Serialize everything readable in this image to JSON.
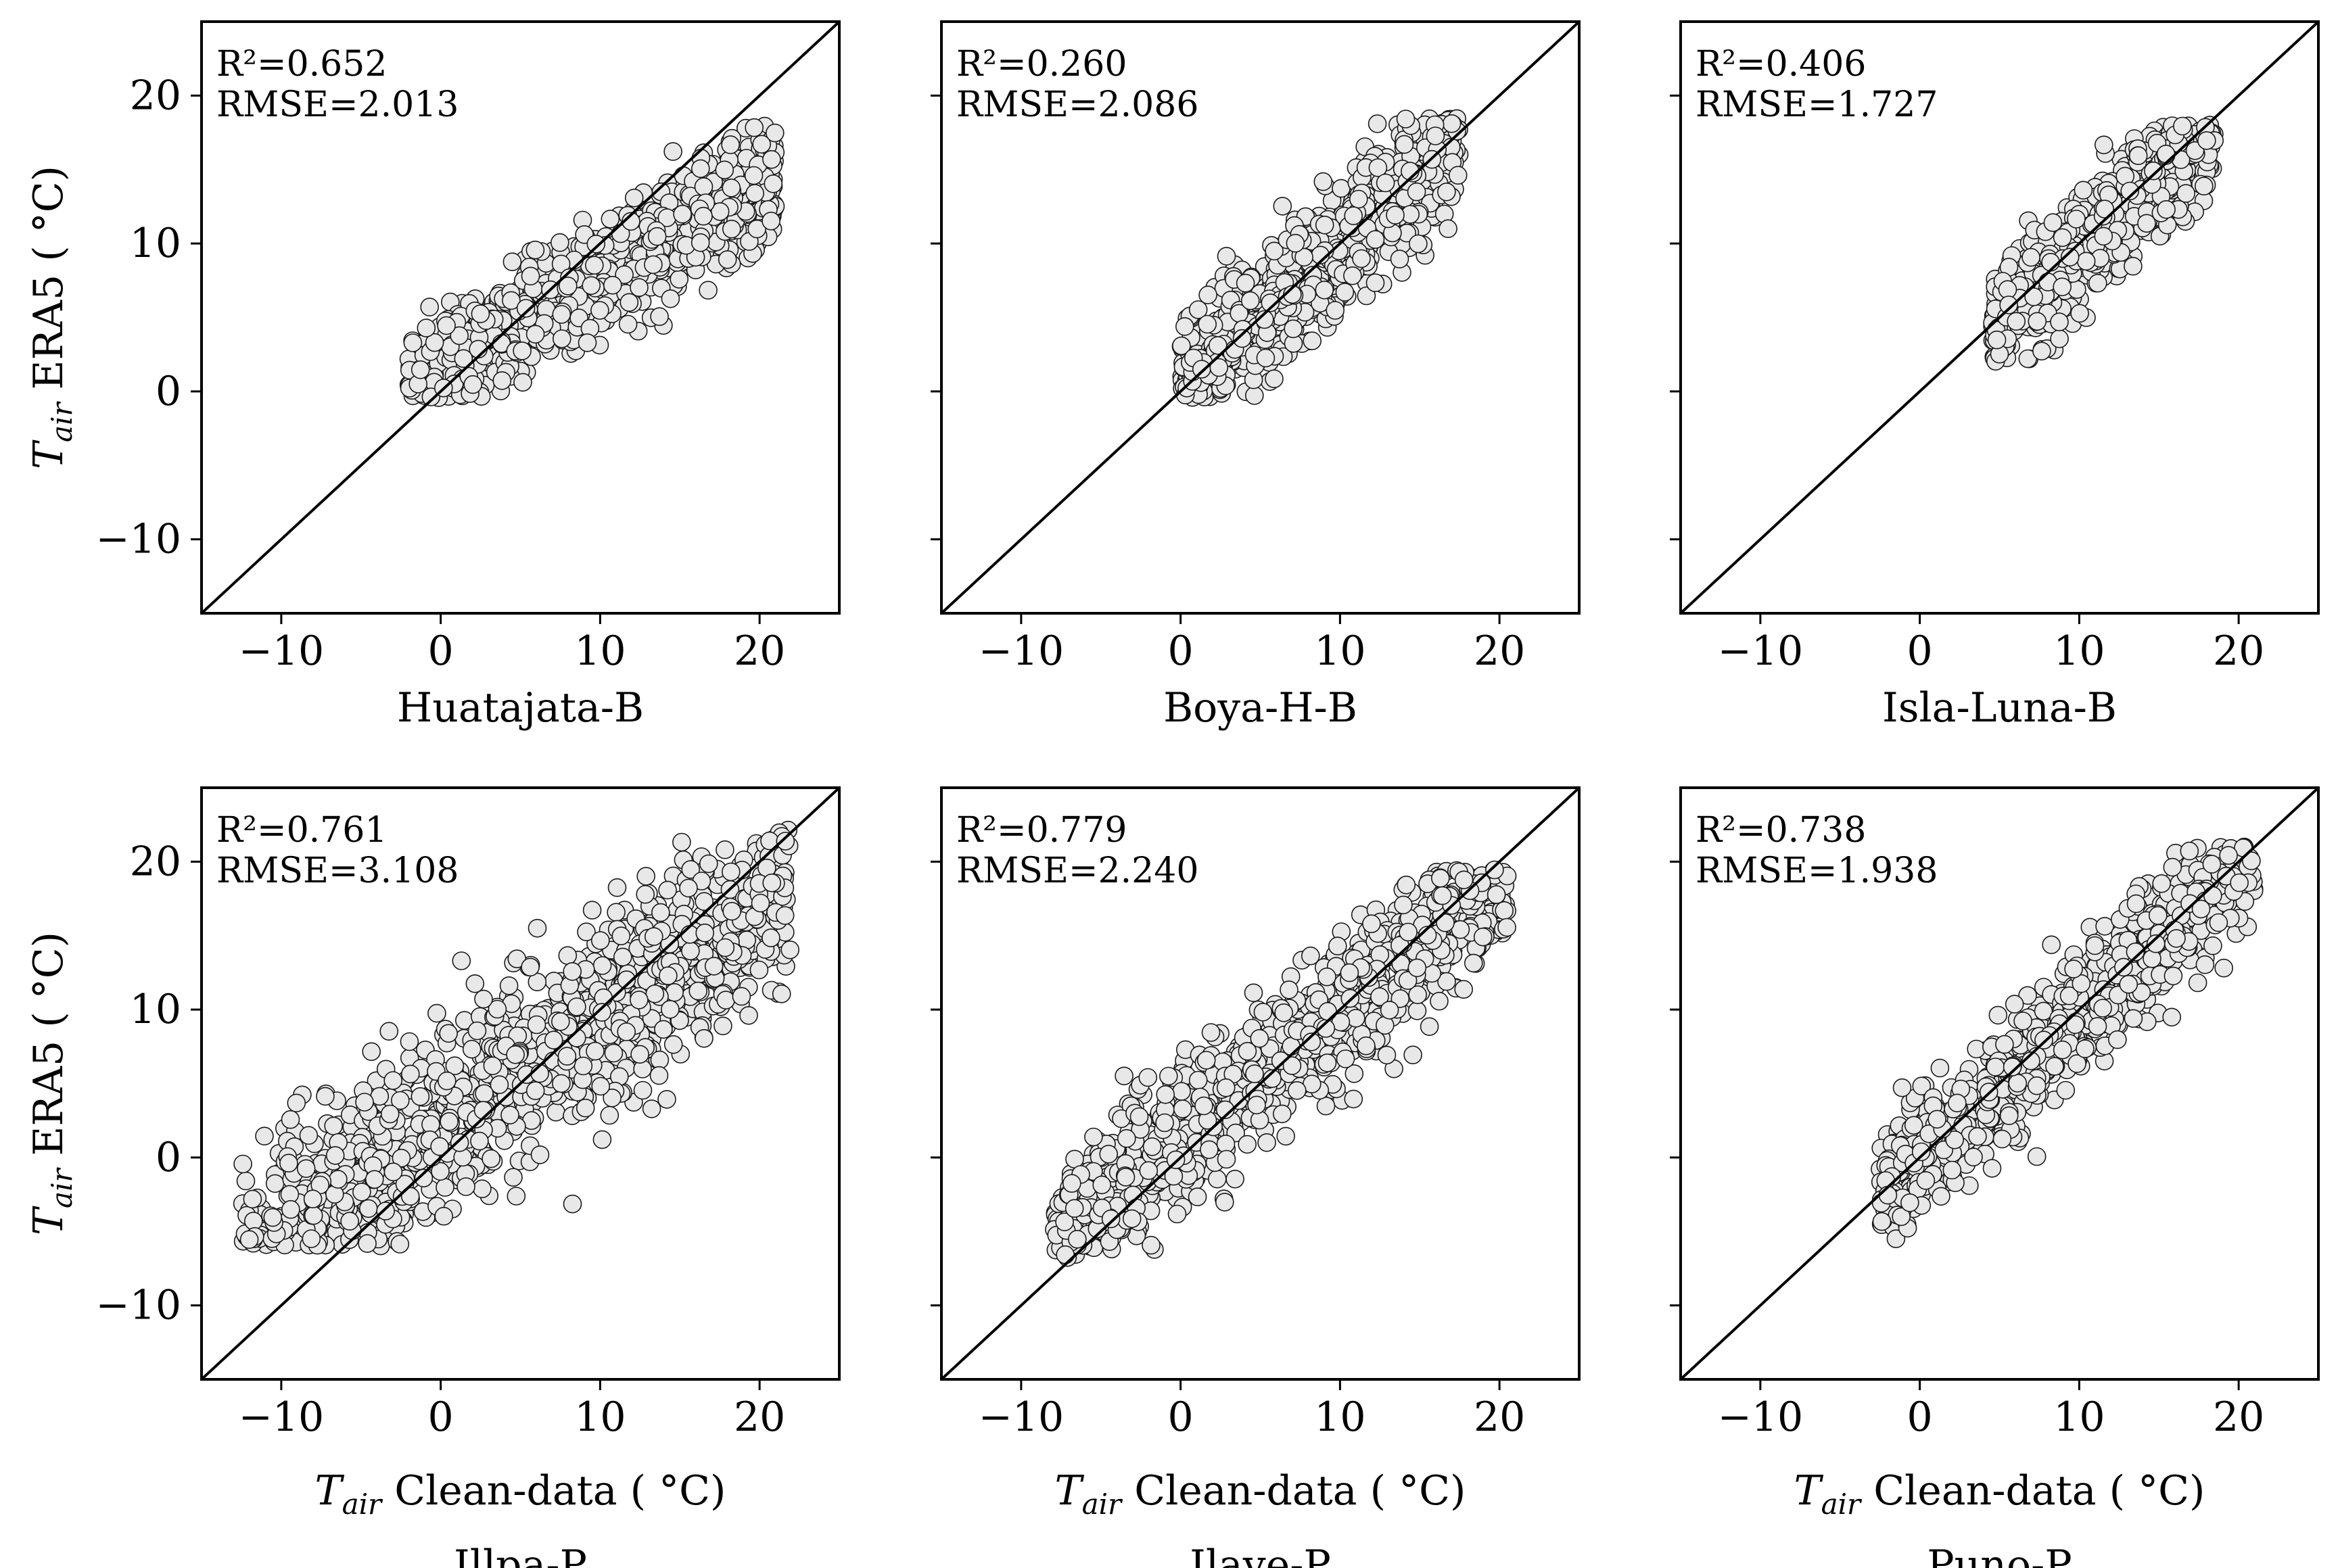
{
  "chart_data": [
    {
      "type": "scatter",
      "station": "Huatajata-B",
      "annotation": {
        "r2": "R²=0.652",
        "rmse": "RMSE=2.013"
      },
      "xlim": [
        -15,
        25
      ],
      "ylim": [
        -15,
        25
      ],
      "xticks": [
        -10,
        0,
        10,
        20
      ],
      "yticks": [
        -10,
        0,
        10,
        20
      ],
      "tick_labels": [
        "−10",
        "0",
        "10",
        "20"
      ],
      "identity_line": true,
      "cloud": {
        "x_range": [
          -2.1,
          21.0
        ],
        "slope": 0.62,
        "intercept": 1.6,
        "spread": 2.0,
        "y_clip": [
          -0.5,
          18.5
        ],
        "n": 900
      },
      "show_xlabel": false,
      "show_ylabel": true
    },
    {
      "type": "scatter",
      "station": "Boya-H-B",
      "annotation": {
        "r2": "R²=0.260",
        "rmse": "RMSE=2.086"
      },
      "xlim": [
        -15,
        25
      ],
      "ylim": [
        -15,
        25
      ],
      "xticks": [
        -10,
        0,
        10,
        20
      ],
      "yticks": [
        -10,
        0,
        10,
        20
      ],
      "tick_labels": [
        "−10",
        "0",
        "10",
        "20"
      ],
      "identity_line": true,
      "cloud": {
        "x_range": [
          0.0,
          17.5
        ],
        "slope": 0.95,
        "intercept": 0.3,
        "spread": 2.2,
        "y_clip": [
          -0.5,
          18.5
        ],
        "n": 900
      },
      "show_xlabel": false,
      "show_ylabel": false
    },
    {
      "type": "scatter",
      "station": "Isla-Luna-B",
      "annotation": {
        "r2": "R²=0.406",
        "rmse": "RMSE=1.727"
      },
      "xlim": [
        -15,
        25
      ],
      "ylim": [
        -15,
        25
      ],
      "xticks": [
        -10,
        0,
        10,
        20
      ],
      "yticks": [
        -10,
        0,
        10,
        20
      ],
      "tick_labels": [
        "−10",
        "0",
        "10",
        "20"
      ],
      "identity_line": true,
      "cloud": {
        "x_range": [
          4.5,
          18.5
        ],
        "slope": 1.0,
        "intercept": -0.5,
        "spread": 2.0,
        "y_clip": [
          2.0,
          18.0
        ],
        "n": 800
      },
      "show_xlabel": false,
      "show_ylabel": false
    },
    {
      "type": "scatter",
      "station": "Illpa-P",
      "annotation": {
        "r2": "R²=0.761",
        "rmse": "RMSE=3.108"
      },
      "xlim": [
        -15,
        25
      ],
      "ylim": [
        -15,
        25
      ],
      "xticks": [
        -10,
        0,
        10,
        20
      ],
      "yticks": [
        -10,
        0,
        10,
        20
      ],
      "tick_labels": [
        "−10",
        "0",
        "10",
        "20"
      ],
      "identity_line": true,
      "cloud": {
        "x_range": [
          -12.5,
          22.0
        ],
        "slope": 0.72,
        "intercept": 2.5,
        "spread": 3.2,
        "y_clip": [
          -6.0,
          22.5
        ],
        "n": 1300
      },
      "show_xlabel": true,
      "show_ylabel": true
    },
    {
      "type": "scatter",
      "station": "Ilave-P",
      "annotation": {
        "r2": "R²=0.779",
        "rmse": "RMSE=2.240"
      },
      "xlim": [
        -15,
        25
      ],
      "ylim": [
        -15,
        25
      ],
      "xticks": [
        -10,
        0,
        10,
        20
      ],
      "yticks": [
        -10,
        0,
        10,
        20
      ],
      "tick_labels": [
        "−10",
        "0",
        "10",
        "20"
      ],
      "identity_line": true,
      "cloud": {
        "x_range": [
          -8.0,
          20.5
        ],
        "slope": 0.85,
        "intercept": 1.5,
        "spread": 2.4,
        "y_clip": [
          -7.0,
          19.5
        ],
        "n": 1100
      },
      "show_xlabel": true,
      "show_ylabel": false
    },
    {
      "type": "scatter",
      "station": "Puno-P",
      "annotation": {
        "r2": "R²=0.738",
        "rmse": "RMSE=1.938"
      },
      "xlim": [
        -15,
        25
      ],
      "ylim": [
        -15,
        25
      ],
      "xticks": [
        -10,
        0,
        10,
        20
      ],
      "yticks": [
        -10,
        0,
        10,
        20
      ],
      "tick_labels": [
        "−10",
        "0",
        "10",
        "20"
      ],
      "identity_line": true,
      "cloud": {
        "x_range": [
          -2.5,
          21.0
        ],
        "slope": 1.0,
        "intercept": -0.3,
        "spread": 2.0,
        "y_clip": [
          -5.5,
          21.0
        ],
        "n": 1000
      },
      "show_xlabel": true,
      "show_ylabel": false
    }
  ],
  "labels": {
    "ylabel_italic": "T",
    "ylabel_sub": "air",
    "ylabel_rest": " ERA5 ( °C)",
    "xlabel_italic": "T",
    "xlabel_sub": "air",
    "xlabel_rest": " Clean-data ( °C)"
  },
  "style": {
    "marker_fill": "#e8e8e8",
    "marker_edge": "#1a1a1a",
    "line_color": "#000000"
  }
}
